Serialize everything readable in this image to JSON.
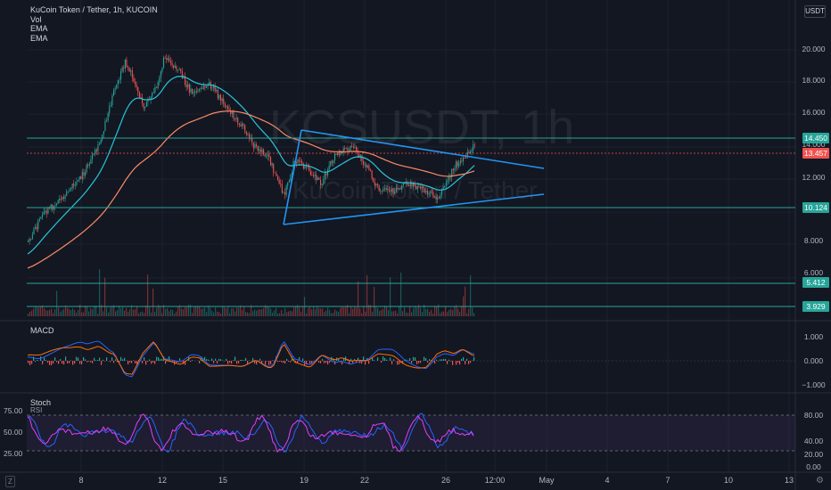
{
  "legend": {
    "title": "KuCoin Token / Tether, 1h, KUCOIN",
    "vol": "Vol",
    "ema1": "EMA",
    "ema2": "EMA"
  },
  "watermark": {
    "symbol": "KCSUSDT, 1h",
    "name": "KuCoin Token / Tether"
  },
  "currency_unit": "USDT",
  "price_axis": [
    "20.000",
    "18.000",
    "16.000",
    "14.000",
    "12.000",
    "10.000",
    "8.000",
    "6.000"
  ],
  "price_tags": [
    {
      "text": "14.450",
      "color": "#26a69a"
    },
    {
      "text": "13.457",
      "color": "#ef5350"
    },
    {
      "text": "10.124",
      "color": "#26a69a"
    },
    {
      "text": "5.412",
      "color": "#26a69a"
    },
    {
      "text": "3.929",
      "color": "#26a69a"
    }
  ],
  "macd": {
    "title": "MACD",
    "axis": [
      "1.000",
      "0.000",
      "−1.000"
    ]
  },
  "stoch": {
    "title": "Stoch",
    "subtitle": "RSI",
    "axis": [
      "80.00",
      "40.00",
      "20.00",
      "0.00"
    ],
    "left_axis": [
      "75.00",
      "50.00",
      "25.00"
    ]
  },
  "time_axis": [
    "8",
    "12",
    "15",
    "19",
    "22",
    "26",
    "12:00",
    "May",
    "4",
    "7",
    "10",
    "13"
  ],
  "settings_icon": "gear-icon",
  "logo_text": "Z"
}
